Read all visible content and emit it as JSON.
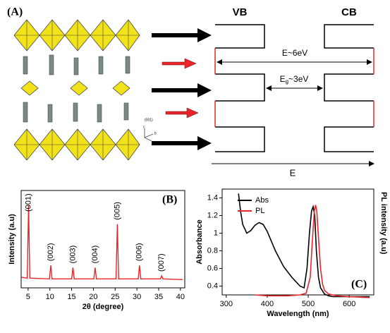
{
  "panel_a": {
    "label": "(A)",
    "vb": "VB",
    "cb": "CB",
    "wide_gap": "E~6eV",
    "eg_main": "E",
    "eg_sub": "g",
    "eg_value": "~3eV",
    "energy": "E",
    "plane": "(001)",
    "axis_c": "c",
    "axis_b": "b",
    "axis_a": "a"
  },
  "chart_data": [
    {
      "type": "line",
      "panel_label": "(B)",
      "xlabel": "2θ (degree)",
      "ylabel": "Intensity (a.u)",
      "color": "#e8262a",
      "xlim": [
        3.4,
        41
      ],
      "xticks": [
        5,
        10,
        15,
        20,
        25,
        30,
        35,
        40
      ],
      "ylim": [
        0,
        130
      ],
      "x": [
        3.5,
        4.8,
        5.1,
        5.4,
        9.9,
        10.2,
        10.5,
        15.0,
        15.3,
        15.6,
        20.1,
        20.4,
        20.7,
        25.2,
        25.5,
        25.8,
        30.3,
        30.6,
        30.9,
        35.4,
        35.7,
        36.0,
        40.5
      ],
      "values": [
        14,
        13,
        110,
        13,
        12,
        30,
        12,
        12,
        27,
        12,
        12,
        27,
        12,
        12,
        85,
        12,
        12,
        30,
        12,
        12,
        16,
        12,
        11
      ],
      "peak_labels": [
        "(001)",
        "(002)",
        "(003)",
        "(004)",
        "(005)",
        "(006)",
        "(007)"
      ]
    },
    {
      "type": "line",
      "panel_label": "(C)",
      "xlabel": "Wavelength (nm)",
      "ylabel": "Absorbance",
      "y2label": "PL intensity (a.u)",
      "xlim": [
        290,
        660
      ],
      "xticks": [
        300,
        400,
        500,
        600
      ],
      "ylim": [
        0.3,
        1.5
      ],
      "yticks": [
        0.4,
        0.6,
        0.8,
        1.0,
        1.2,
        1.4
      ],
      "series": [
        {
          "name": "Abs",
          "color": "#000000",
          "x": [
            330,
            335,
            340,
            350,
            360,
            370,
            380,
            390,
            400,
            420,
            440,
            460,
            480,
            490,
            497,
            503,
            508,
            512,
            516,
            520,
            525,
            530,
            540,
            550,
            560,
            580,
            600,
            620,
            640,
            650
          ],
          "values": [
            1.45,
            1.25,
            1.1,
            1.0,
            1.03,
            1.09,
            1.12,
            1.1,
            1.02,
            0.8,
            0.62,
            0.5,
            0.4,
            0.38,
            0.6,
            1.0,
            1.25,
            1.3,
            1.2,
            0.8,
            0.5,
            0.38,
            0.31,
            0.29,
            0.28,
            0.28,
            0.28,
            0.28,
            0.28,
            0.28
          ]
        },
        {
          "name": "PL",
          "color": "#e8262a",
          "x": [
            370,
            400,
            450,
            480,
            495,
            505,
            510,
            515,
            518,
            521,
            525,
            530,
            535,
            540,
            550,
            570,
            600,
            650
          ],
          "values": [
            0.3,
            0.29,
            0.29,
            0.3,
            0.32,
            0.5,
            0.9,
            1.25,
            1.32,
            1.25,
            0.95,
            0.6,
            0.42,
            0.35,
            0.31,
            0.29,
            0.28,
            0.27
          ]
        }
      ]
    }
  ]
}
